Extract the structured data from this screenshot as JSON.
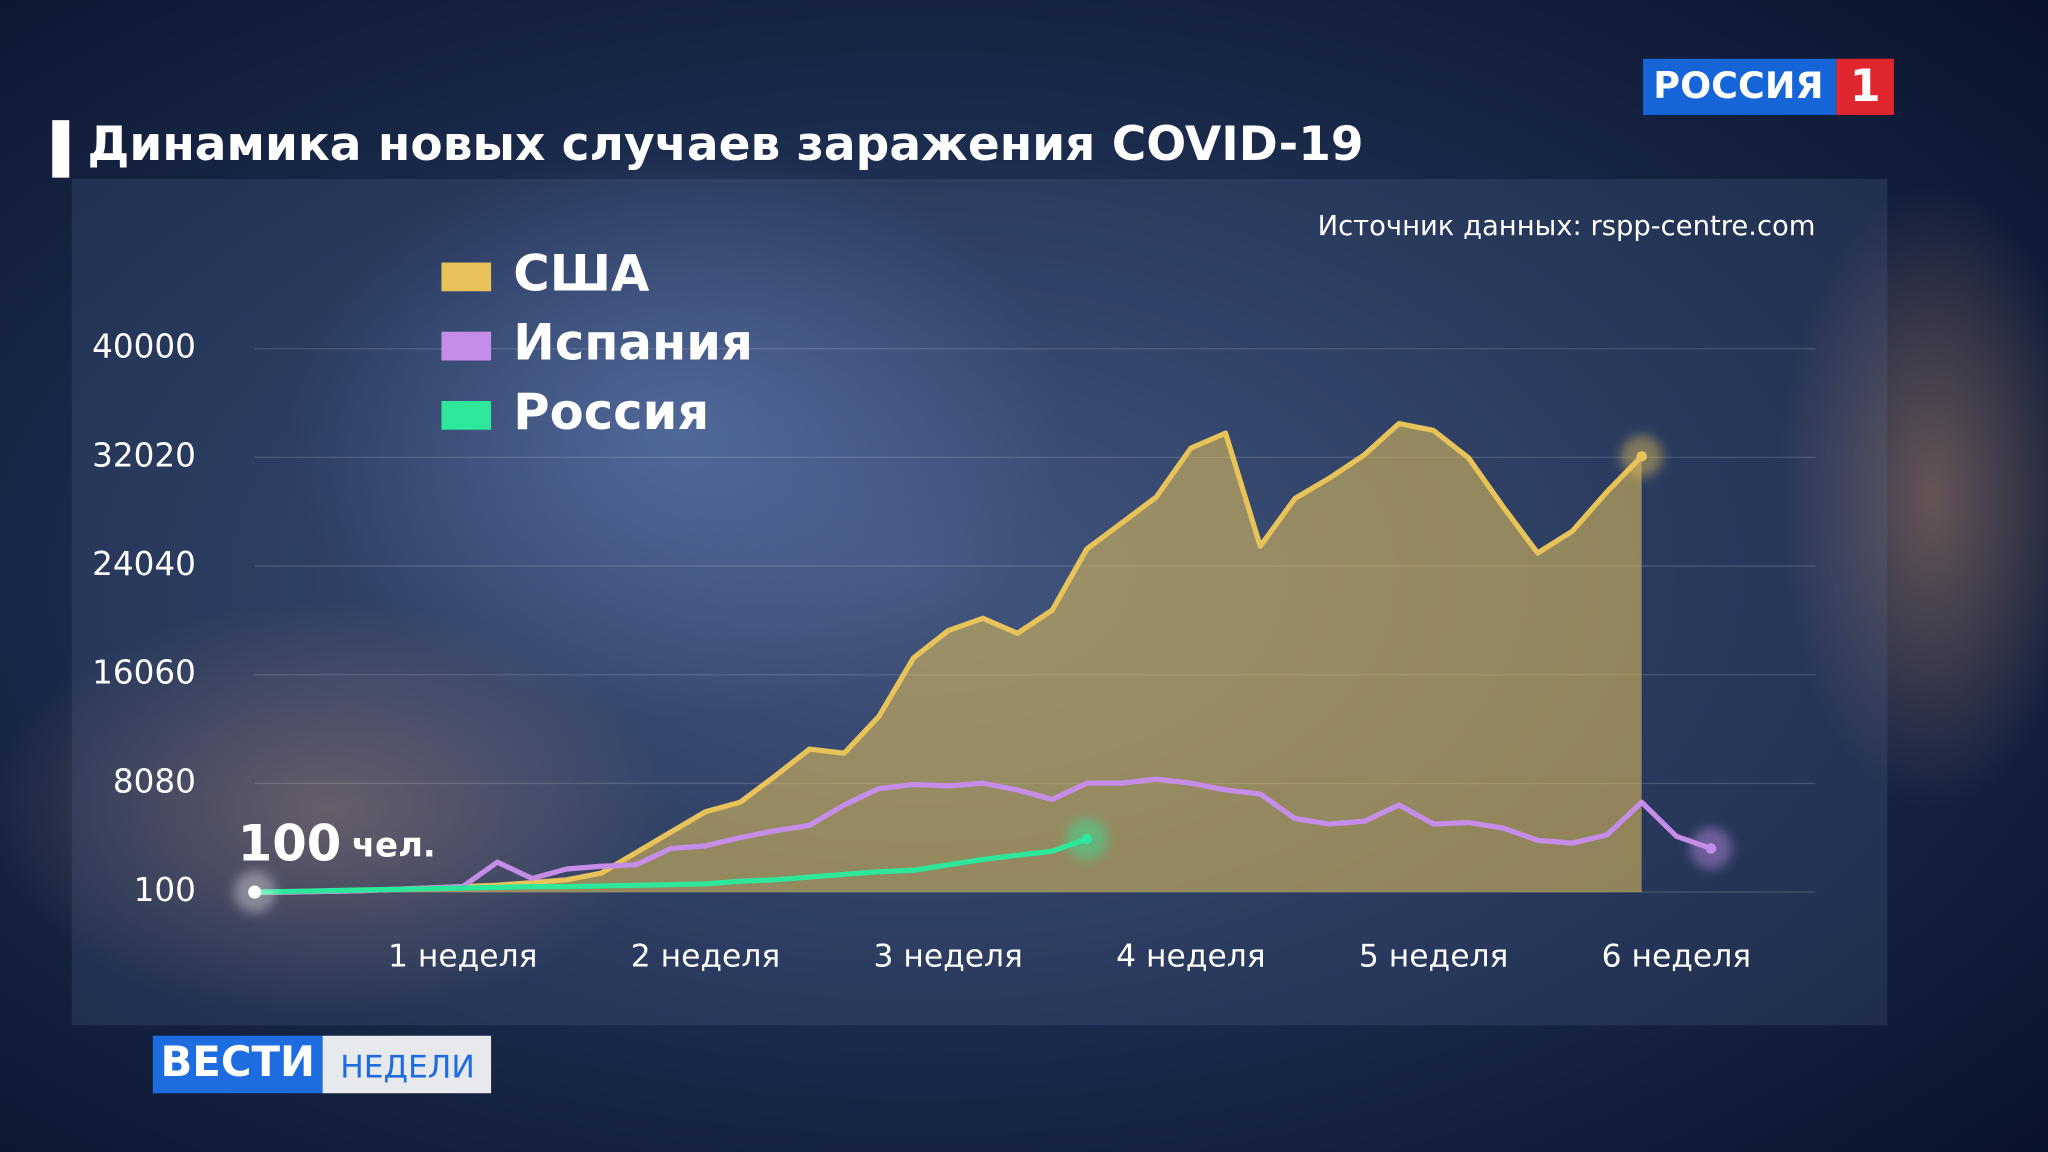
{
  "chart_data": {
    "type": "line",
    "title": "Динамика новых случаев заражения COVID-19",
    "source": "Источник данных: rspp-centre.com",
    "annotation": "100 чел.",
    "x": [
      0,
      1,
      2,
      3,
      4,
      5,
      6,
      7,
      8,
      9,
      10,
      11,
      12,
      13,
      14,
      15,
      16,
      17,
      18,
      19,
      20,
      21,
      22,
      23,
      24,
      25,
      26,
      27,
      28,
      29,
      30,
      31,
      32,
      33,
      34,
      35,
      36,
      37,
      38,
      39,
      40,
      41,
      42
    ],
    "xlim": [
      0,
      42
    ],
    "xticks": [
      {
        "value": 6,
        "label": "1 неделя"
      },
      {
        "value": 13,
        "label": "2 неделя"
      },
      {
        "value": 20,
        "label": "3 неделя"
      },
      {
        "value": 27,
        "label": "4 неделя"
      },
      {
        "value": 34,
        "label": "5 неделя"
      },
      {
        "value": 41,
        "label": "6 неделя"
      }
    ],
    "ylim": [
      100,
      40000
    ],
    "yticks": [
      100,
      8080,
      16060,
      24040,
      32020,
      40000
    ],
    "grid": true,
    "series": [
      {
        "name": "США",
        "color": "#e8c35a",
        "area": true,
        "values": [
          100,
          100,
          150,
          200,
          300,
          400,
          500,
          600,
          800,
          1000,
          1500,
          3000,
          4500,
          6000,
          6700,
          8600,
          10600,
          10300,
          13000,
          17300,
          19300,
          20200,
          19100,
          20800,
          25300,
          27200,
          29100,
          32700,
          33800,
          25500,
          29000,
          30500,
          32200,
          34500,
          34000,
          32000,
          28400,
          25000,
          26600,
          29500,
          32100,
          null,
          null
        ]
      },
      {
        "name": "Испания",
        "color": "#c58de8",
        "values": [
          100,
          100,
          150,
          200,
          300,
          400,
          500,
          2300,
          1100,
          1800,
          2000,
          2100,
          3300,
          3500,
          4100,
          4600,
          5000,
          6500,
          7700,
          8000,
          7900,
          8100,
          7600,
          6900,
          8100,
          8100,
          8400,
          8100,
          7600,
          7300,
          5500,
          5100,
          5300,
          6500,
          5100,
          5200,
          4800,
          3900,
          3700,
          4300,
          6700,
          4200,
          3300
        ]
      },
      {
        "name": "Россия",
        "color": "#2de89a",
        "values": [
          100,
          150,
          200,
          250,
          300,
          350,
          400,
          450,
          500,
          500,
          550,
          600,
          650,
          700,
          900,
          1000,
          1200,
          1400,
          1600,
          1700,
          2100,
          2500,
          2800,
          3100,
          4000,
          null,
          null,
          null,
          null,
          null,
          null,
          null,
          null,
          null,
          null,
          null,
          null,
          null,
          null,
          null,
          null,
          null,
          null
        ]
      }
    ]
  },
  "branding": {
    "channel": "РОССИЯ",
    "channel_number": "1",
    "show": "ВЕСТИ",
    "show_sub": "НЕДЕЛИ"
  }
}
